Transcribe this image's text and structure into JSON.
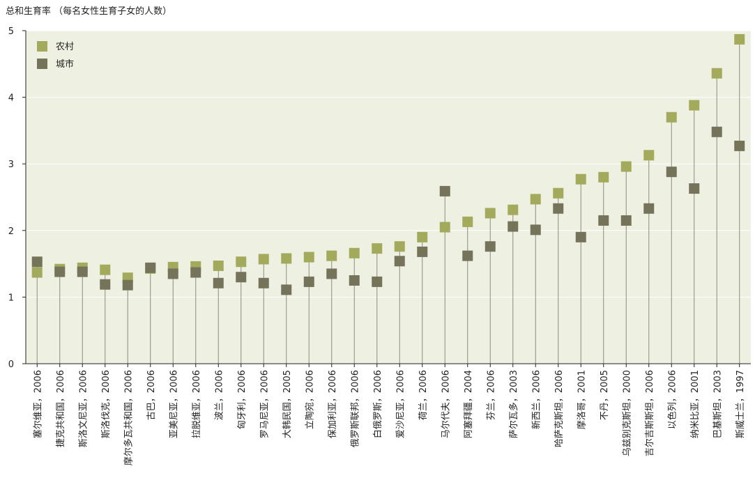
{
  "title": "总和生育率 （每名女性生育子女的人数）",
  "colors": {
    "plot_bg": "#eef0e1",
    "rural": "#a3aa5b",
    "urban": "#76735b",
    "stem": "#8b8b80",
    "axis": "#231f20"
  },
  "chart_data": {
    "type": "scatter",
    "ylim": [
      0,
      5
    ],
    "yticks": [
      0,
      1,
      2,
      3,
      4,
      5
    ],
    "grid": true,
    "legend_position": "top-left",
    "categories": [
      "塞尔维亚，2006",
      "捷克共和国，2006",
      "斯洛文尼亚，2006",
      "斯洛伐克，2006",
      "摩尔多瓦共和国，2006",
      "古巴，2006",
      "亚美尼亚，2006",
      "拉脱维亚，2006",
      "波兰，2006",
      "匈牙利，2006",
      "罗马尼亚，2006",
      "大韩民国，2005",
      "立陶宛，2006",
      "保加利亚，2006",
      "俄罗斯联邦，2006",
      "白俄罗斯，2006",
      "爱沙尼亚，2006",
      "荷兰，2006",
      "马尔代夫，2006",
      "阿塞拜疆，2004",
      "芬兰，2006",
      "萨尔瓦多，2003",
      "新西兰，2006",
      "哈萨克斯坦，2006",
      "摩洛哥，2001",
      "不丹，2005",
      "乌兹别克斯坦，2000",
      "吉尔吉斯斯坦，2006",
      "以色列，2006",
      "纳米比亚，2001",
      "巴基斯坦，2003",
      "斯威士兰，1997"
    ],
    "series": [
      {
        "name": "农村",
        "values": [
          1.37,
          1.42,
          1.44,
          1.41,
          1.29,
          1.43,
          1.45,
          1.46,
          1.47,
          1.53,
          1.57,
          1.58,
          1.6,
          1.62,
          1.66,
          1.73,
          1.76,
          1.9,
          2.05,
          2.13,
          2.26,
          2.31,
          2.47,
          2.56,
          2.77,
          2.8,
          2.96,
          3.13,
          3.7,
          3.88,
          4.36,
          4.87
        ]
      },
      {
        "name": "城市",
        "values": [
          1.53,
          1.38,
          1.38,
          1.19,
          1.18,
          1.44,
          1.35,
          1.37,
          1.21,
          1.3,
          1.21,
          1.11,
          1.23,
          1.35,
          1.25,
          1.23,
          1.54,
          1.68,
          2.59,
          1.62,
          1.76,
          2.06,
          2.01,
          2.33,
          1.9,
          2.15,
          2.15,
          2.33,
          2.88,
          2.63,
          3.48,
          3.27
        ]
      }
    ]
  }
}
